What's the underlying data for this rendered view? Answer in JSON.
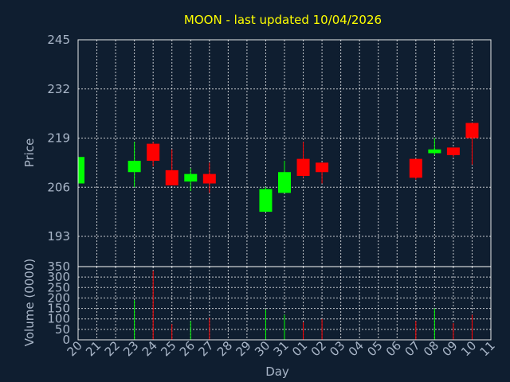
{
  "chart_data": [
    {
      "type": "candlestick",
      "title": "MOON - last updated 10/04/2026",
      "ylabel": "Price",
      "ylim": [
        185,
        245
      ],
      "yticks": [
        193,
        206,
        219,
        232,
        245
      ],
      "up_color": "#00ff00",
      "down_color": "#ff0000",
      "categories": [
        "20",
        "21",
        "22",
        "23",
        "24",
        "25",
        "26",
        "27",
        "28",
        "29",
        "30",
        "31",
        "01",
        "02",
        "03",
        "04",
        "05",
        "06",
        "07",
        "08",
        "09",
        "10",
        "11"
      ],
      "candles": [
        {
          "x": "20",
          "open": 207.0,
          "high": 214.0,
          "low": 207.0,
          "close": 214.0
        },
        {
          "x": "23",
          "open": 210.0,
          "high": 218.0,
          "low": 206.0,
          "close": 213.0
        },
        {
          "x": "24",
          "open": 217.5,
          "high": 218.0,
          "low": 211.5,
          "close": 213.0
        },
        {
          "x": "25",
          "open": 210.5,
          "high": 216.0,
          "low": 206.5,
          "close": 206.5
        },
        {
          "x": "26",
          "open": 207.5,
          "high": 211.0,
          "low": 205.0,
          "close": 209.5
        },
        {
          "x": "27",
          "open": 209.5,
          "high": 212.5,
          "low": 204.5,
          "close": 207.0
        },
        {
          "x": "30",
          "open": 199.5,
          "high": 206.0,
          "low": 199.5,
          "close": 205.5
        },
        {
          "x": "31",
          "open": 204.5,
          "high": 213.0,
          "low": 204.5,
          "close": 210.0
        },
        {
          "x": "01",
          "open": 213.5,
          "high": 218.0,
          "low": 208.5,
          "close": 209.0
        },
        {
          "x": "02",
          "open": 212.5,
          "high": 212.5,
          "low": 207.0,
          "close": 210.0
        },
        {
          "x": "07",
          "open": 213.5,
          "high": 213.5,
          "low": 208.0,
          "close": 208.5
        },
        {
          "x": "08",
          "open": 215.0,
          "high": 219.0,
          "low": 214.5,
          "close": 216.0
        },
        {
          "x": "09",
          "open": 216.5,
          "high": 216.5,
          "low": 214.0,
          "close": 214.5
        },
        {
          "x": "10",
          "open": 223.0,
          "high": 223.0,
          "low": 212.0,
          "close": 219.0
        }
      ]
    },
    {
      "type": "bar",
      "ylabel": "Volume (0000)",
      "xlabel": "Day",
      "ylim": [
        0,
        350
      ],
      "yticks": [
        0,
        50,
        100,
        150,
        200,
        250,
        300,
        350
      ],
      "bars": [
        {
          "x": "23",
          "value": 190,
          "direction": "up"
        },
        {
          "x": "24",
          "value": 330,
          "direction": "down"
        },
        {
          "x": "25",
          "value": 75,
          "direction": "down"
        },
        {
          "x": "26",
          "value": 90,
          "direction": "up"
        },
        {
          "x": "27",
          "value": 105,
          "direction": "down"
        },
        {
          "x": "30",
          "value": 145,
          "direction": "up"
        },
        {
          "x": "31",
          "value": 120,
          "direction": "up"
        },
        {
          "x": "01",
          "value": 85,
          "direction": "down"
        },
        {
          "x": "02",
          "value": 100,
          "direction": "down"
        },
        {
          "x": "07",
          "value": 90,
          "direction": "down"
        },
        {
          "x": "08",
          "value": 150,
          "direction": "up"
        },
        {
          "x": "09",
          "value": 80,
          "direction": "down"
        },
        {
          "x": "10",
          "value": 120,
          "direction": "down"
        }
      ]
    }
  ]
}
